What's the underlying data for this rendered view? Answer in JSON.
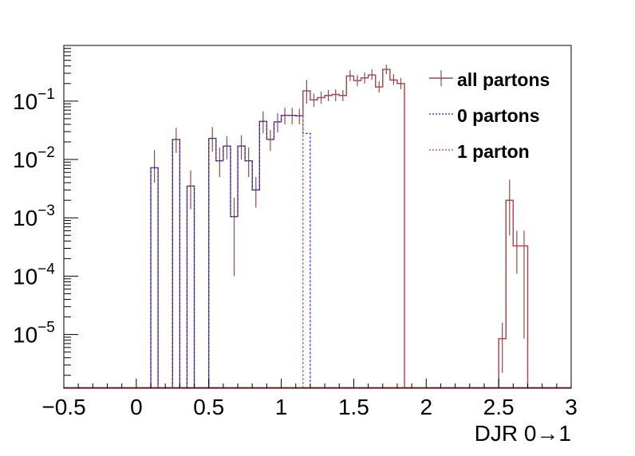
{
  "chart_data": {
    "type": "histogram",
    "title": "",
    "xlabel": "DJR 0→1",
    "ylabel": "",
    "xlim": [
      -0.5,
      3.0
    ],
    "ylim": [
      1.2e-06,
      0.9
    ],
    "yscale": "log",
    "grid": false,
    "legend_position": "top-right",
    "bin_width": 0.05,
    "x_ticks": [
      "−0.5",
      "0",
      "0.5",
      "1",
      "1.5",
      "2",
      "2.5",
      "3"
    ],
    "x_tick_values": [
      -0.5,
      0,
      0.5,
      1,
      1.5,
      2,
      2.5,
      3
    ],
    "y_ticks": [
      {
        "base": "10",
        "exp": "−5",
        "value": 1e-05
      },
      {
        "base": "10",
        "exp": "−4",
        "value": 0.0001
      },
      {
        "base": "10",
        "exp": "−3",
        "value": 0.001
      },
      {
        "base": "10",
        "exp": "−2",
        "value": 0.01
      },
      {
        "base": "10",
        "exp": "−1",
        "value": 0.1
      }
    ],
    "series": [
      {
        "name": "all partons",
        "color": "#8a4e4e",
        "style": "solid",
        "bins": [
          {
            "x": 0.125,
            "y": 0.0072,
            "err": [
              0.004,
              0.0145
            ]
          },
          {
            "x": 0.275,
            "y": 0.022,
            "err": [
              0.013,
              0.035
            ]
          },
          {
            "x": 0.375,
            "y": 0.0035,
            "err": [
              0.0014,
              0.0065
            ]
          },
          {
            "x": 0.525,
            "y": 0.023,
            "err": [
              0.0135,
              0.036
            ]
          },
          {
            "x": 0.575,
            "y": 0.0095,
            "err": [
              0.005,
              0.016
            ]
          },
          {
            "x": 0.625,
            "y": 0.017,
            "err": [
              0.01,
              0.025
            ]
          },
          {
            "x": 0.675,
            "y": 0.00105,
            "err": [
              0.0001,
              0.0022
            ]
          },
          {
            "x": 0.725,
            "y": 0.017,
            "err": [
              0.01,
              0.026
            ]
          },
          {
            "x": 0.775,
            "y": 0.0095,
            "err": [
              0.005,
              0.016
            ]
          },
          {
            "x": 0.825,
            "y": 0.003,
            "err": [
              0.0015,
              0.005
            ]
          },
          {
            "x": 0.875,
            "y": 0.045,
            "err": [
              0.028,
              0.067
            ]
          },
          {
            "x": 0.925,
            "y": 0.022,
            "err": [
              0.014,
              0.032
            ]
          },
          {
            "x": 0.975,
            "y": 0.044,
            "err": [
              0.029,
              0.062
            ]
          },
          {
            "x": 1.025,
            "y": 0.057,
            "err": [
              0.04,
              0.077
            ]
          },
          {
            "x": 1.075,
            "y": 0.057,
            "err": [
              0.04,
              0.077
            ]
          },
          {
            "x": 1.125,
            "y": 0.056,
            "err": [
              0.04,
              0.074
            ]
          },
          {
            "x": 1.175,
            "y": 0.15,
            "err": [
              0.09,
              0.23
            ]
          },
          {
            "x": 1.225,
            "y": 0.105,
            "err": [
              0.08,
              0.135
            ]
          },
          {
            "x": 1.275,
            "y": 0.115,
            "err": [
              0.09,
              0.145
            ]
          },
          {
            "x": 1.325,
            "y": 0.125,
            "err": [
              0.1,
              0.155
            ]
          },
          {
            "x": 1.375,
            "y": 0.13,
            "err": [
              0.1,
              0.16
            ]
          },
          {
            "x": 1.425,
            "y": 0.125,
            "err": [
              0.1,
              0.155
            ]
          },
          {
            "x": 1.475,
            "y": 0.27,
            "err": [
              0.22,
              0.34
            ]
          },
          {
            "x": 1.525,
            "y": 0.225,
            "err": [
              0.18,
              0.28
            ]
          },
          {
            "x": 1.575,
            "y": 0.25,
            "err": [
              0.2,
              0.31
            ]
          },
          {
            "x": 1.625,
            "y": 0.28,
            "err": [
              0.23,
              0.35
            ]
          },
          {
            "x": 1.675,
            "y": 0.175,
            "err": [
              0.14,
              0.22
            ]
          },
          {
            "x": 1.725,
            "y": 0.35,
            "err": [
              0.29,
              0.42
            ]
          },
          {
            "x": 1.775,
            "y": 0.23,
            "err": [
              0.19,
              0.29
            ]
          },
          {
            "x": 1.825,
            "y": 0.2,
            "err": [
              0.16,
              0.25
            ]
          },
          {
            "x": 2.525,
            "y": 8.5e-06,
            "err": [
              2.2e-06,
              1.6e-05
            ]
          },
          {
            "x": 2.575,
            "y": 0.002,
            "err": [
              0.0005,
              0.0045
            ]
          },
          {
            "x": 2.625,
            "y": 0.00033,
            "err": [
              0.00011,
              0.0006
            ]
          },
          {
            "x": 2.675,
            "y": 0.00033,
            "err": [
              8.5e-06,
              0.0006
            ]
          }
        ]
      },
      {
        "name": "0 partons",
        "color": "#1f1fd8",
        "style": "dotted",
        "bins": [
          {
            "x": 0.125,
            "y": 0.0072
          },
          {
            "x": 0.275,
            "y": 0.022
          },
          {
            "x": 0.375,
            "y": 0.0035
          },
          {
            "x": 0.525,
            "y": 0.023
          },
          {
            "x": 0.575,
            "y": 0.0095
          },
          {
            "x": 0.625,
            "y": 0.017
          },
          {
            "x": 0.675,
            "y": 0.00105
          },
          {
            "x": 0.725,
            "y": 0.017
          },
          {
            "x": 0.775,
            "y": 0.0095
          },
          {
            "x": 0.825,
            "y": 0.003
          },
          {
            "x": 0.875,
            "y": 0.045
          },
          {
            "x": 0.925,
            "y": 0.022
          },
          {
            "x": 0.975,
            "y": 0.044
          },
          {
            "x": 1.025,
            "y": 0.057
          },
          {
            "x": 1.075,
            "y": 0.057
          },
          {
            "x": 1.125,
            "y": 0.056
          },
          {
            "x": 1.175,
            "y": 0.028
          }
        ]
      },
      {
        "name": "1 parton",
        "color": "#c43c3c",
        "style": "dotted",
        "bins": [
          {
            "x": 1.175,
            "y": 0.15
          },
          {
            "x": 1.225,
            "y": 0.105
          },
          {
            "x": 1.275,
            "y": 0.115
          },
          {
            "x": 1.325,
            "y": 0.125
          },
          {
            "x": 1.375,
            "y": 0.13
          },
          {
            "x": 1.425,
            "y": 0.125
          },
          {
            "x": 1.475,
            "y": 0.27
          },
          {
            "x": 1.525,
            "y": 0.225
          },
          {
            "x": 1.575,
            "y": 0.25
          },
          {
            "x": 1.625,
            "y": 0.28
          },
          {
            "x": 1.675,
            "y": 0.175
          },
          {
            "x": 1.725,
            "y": 0.35
          },
          {
            "x": 1.775,
            "y": 0.23
          },
          {
            "x": 1.825,
            "y": 0.2
          },
          {
            "x": 2.525,
            "y": 8.5e-06
          },
          {
            "x": 2.575,
            "y": 0.002
          },
          {
            "x": 2.625,
            "y": 0.00033
          },
          {
            "x": 2.675,
            "y": 0.00033
          }
        ]
      }
    ]
  }
}
